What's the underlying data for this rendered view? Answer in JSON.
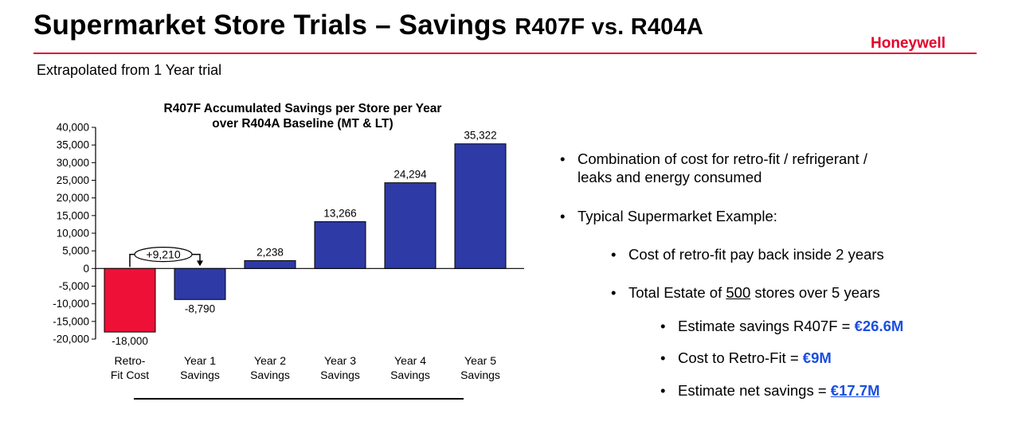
{
  "slide": {
    "title_main": "Supermarket Store Trials – Savings",
    "title_tail": "R407F vs. R404A",
    "brand": "Honeywell",
    "subtitle": "Extrapolated  from 1 Year trial"
  },
  "colors": {
    "brand_red": "#e4002b",
    "negative_bar": "#ee1036",
    "positive_bar": "#2e3aa5",
    "highlight_blue": "#1a4fe0"
  },
  "chart_data": {
    "type": "bar",
    "title_lines": [
      "R407F Accumulated Savings per Store per Year",
      "over R404A Baseline (MT & LT)"
    ],
    "categories": [
      [
        "Retro-",
        "Fit Cost"
      ],
      [
        "Year 1",
        "Savings"
      ],
      [
        "Year 2",
        "Savings"
      ],
      [
        "Year 3",
        "Savings"
      ],
      [
        "Year 4",
        "Savings"
      ],
      [
        "Year 5",
        "Savings"
      ]
    ],
    "values": [
      -18000,
      -8790,
      2238,
      13266,
      24294,
      35322
    ],
    "value_labels": [
      "-18,000",
      "-8,790",
      "2,238",
      "13,266",
      "24,294",
      "35,322"
    ],
    "bar_colors": [
      "#ee1036",
      "#2e3aa5",
      "#2e3aa5",
      "#2e3aa5",
      "#2e3aa5",
      "#2e3aa5"
    ],
    "ylim": [
      -20000,
      40000
    ],
    "yticks": [
      40000,
      35000,
      30000,
      25000,
      20000,
      15000,
      10000,
      5000,
      0,
      -5000,
      -10000,
      -15000,
      -20000
    ],
    "ytick_labels": [
      "40,000",
      "35,000",
      "30,000",
      "25,000",
      "20,000",
      "15,000",
      "10,000",
      "5,000",
      "0",
      "-5,000",
      "-10,000",
      "-15,000",
      "-20,000"
    ],
    "annotation": "+9,210",
    "xlabel": "",
    "ylabel": "",
    "grid": false
  },
  "bullets": {
    "b1_line1": "Combination of cost for retro-fit / refrigerant /",
    "b1_line2": "leaks and energy consumed",
    "b2": "Typical Supermarket Example:",
    "b3": "Cost of retro-fit pay back inside 2 years",
    "b4_pre": "Total Estate of ",
    "b4_num": "500",
    "b4_post": " stores over 5 years",
    "b5_pre": "Estimate savings R407F = ",
    "b5_val": "€26.6M",
    "b6_pre": "Cost to Retro-Fit = ",
    "b6_val": "€9M",
    "b7_pre": "Estimate net savings = ",
    "b7_val": "€17.7M",
    "bullet_glyph": "•"
  }
}
